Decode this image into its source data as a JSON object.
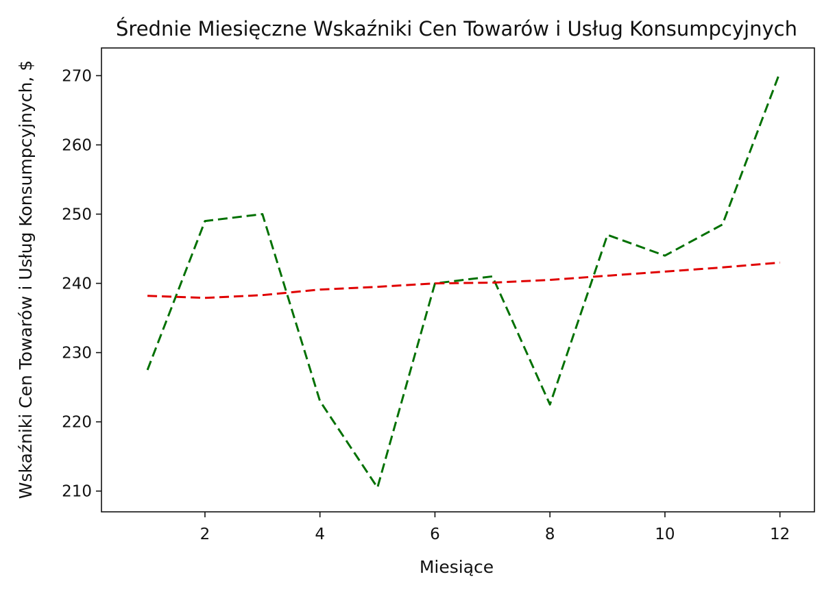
{
  "chart_data": {
    "type": "line",
    "title": "Średnie Miesięczne Wskaźniki Cen Towarów i Usług Konsumpcyjnych",
    "xlabel": "Miesiące",
    "ylabel": "Wskaźniki Cen Towarów i Usług Konsumpcyjnych, $",
    "x": [
      1,
      2,
      3,
      4,
      5,
      6,
      7,
      8,
      9,
      10,
      11,
      12
    ],
    "xlim": [
      0.2,
      12.6
    ],
    "ylim": [
      207,
      274
    ],
    "xticks": [
      2,
      4,
      6,
      8,
      10,
      12
    ],
    "yticks": [
      210,
      220,
      230,
      240,
      250,
      260,
      270
    ],
    "grid": false,
    "series": [
      {
        "color": "#007000",
        "style": "dashed",
        "values": [
          227.5,
          249,
          250,
          223,
          210.5,
          240,
          241,
          222.5,
          247,
          244,
          248.5,
          270.5
        ]
      },
      {
        "color": "#e00000",
        "style": "dashed",
        "values": [
          238.2,
          237.9,
          238.3,
          239.1,
          239.5,
          240.0,
          240.1,
          240.5,
          241.1,
          241.7,
          242.3,
          243.0
        ]
      }
    ]
  }
}
